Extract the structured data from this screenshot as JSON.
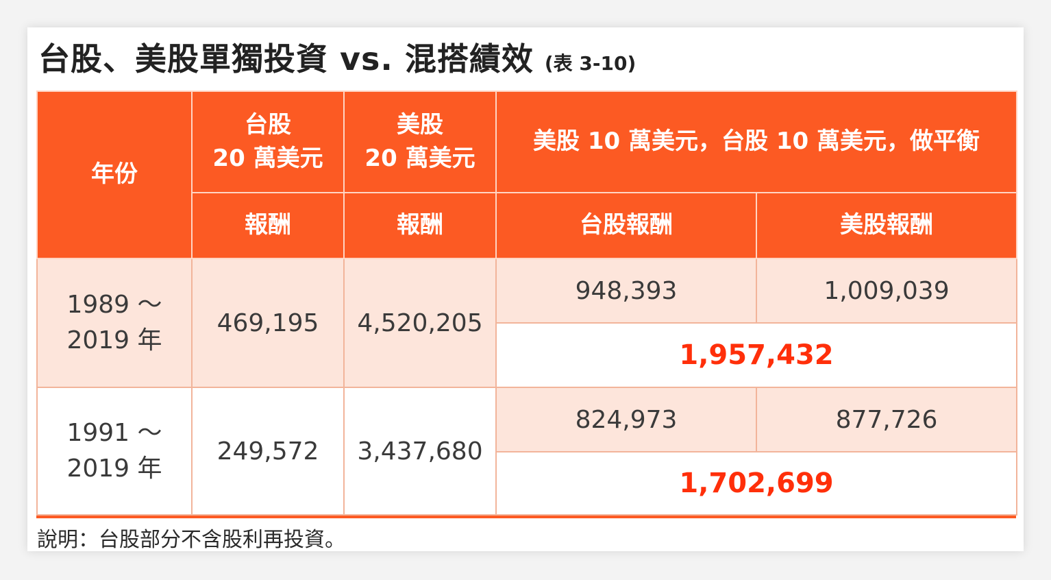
{
  "title": {
    "main": "台股、美股單獨投資 vs. 混搭績效",
    "table_ref": "(表 3-10)"
  },
  "header": {
    "year": "年份",
    "tw_line1": "台股",
    "tw_line2": "20 萬美元",
    "us_line1": "美股",
    "us_line2": "20 萬美元",
    "mix": "美股 10 萬美元，台股 10 萬美元，做平衡",
    "tw_return": "報酬",
    "us_return": "報酬",
    "mix_tw_return": "台股報酬",
    "mix_us_return": "美股報酬"
  },
  "rows": [
    {
      "year_line1": "1989 ～",
      "year_line2": "2019 年",
      "tw_only": "469,195",
      "us_only": "4,520,205",
      "mix_tw": "948,393",
      "mix_us": "1,009,039",
      "mix_total": "1,957,432"
    },
    {
      "year_line1": "1991 ～",
      "year_line2": "2019 年",
      "tw_only": "249,572",
      "us_only": "3,437,680",
      "mix_tw": "824,973",
      "mix_us": "877,726",
      "mix_total": "1,702,699"
    }
  ],
  "note": "說明：台股部分不含股利再投資。",
  "colors": {
    "header_bg": "#fc5a23",
    "row_tint": "#fde5db",
    "total_text": "#ff2f0a"
  }
}
